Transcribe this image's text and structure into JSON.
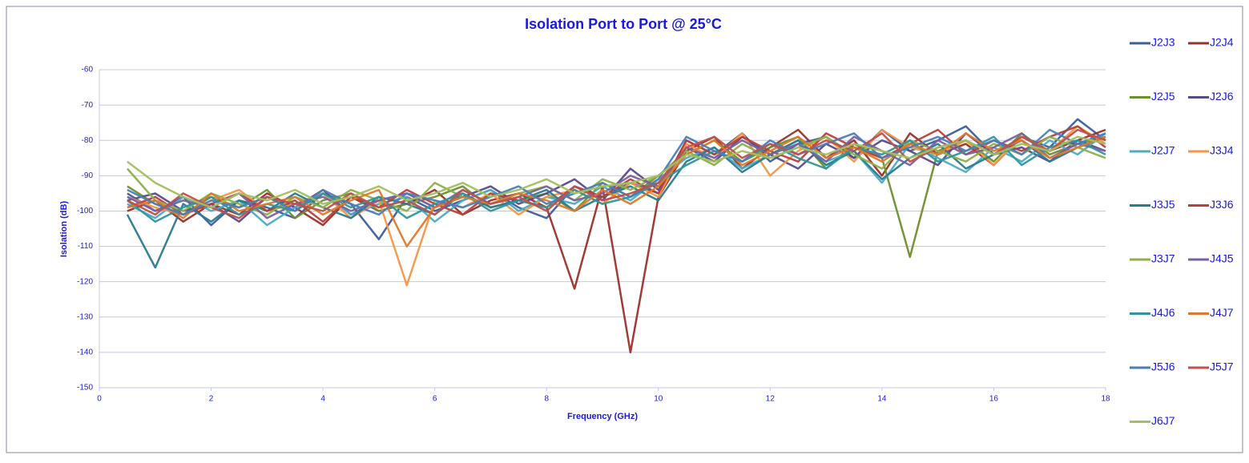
{
  "chart_data": {
    "type": "line",
    "title": "Isolation Port to Port @ 25°C",
    "x_label": "Frequency (GHz)",
    "y_label": "Isolation (dB)",
    "x": [
      0.5,
      1,
      1.5,
      2,
      2.5,
      3,
      3.5,
      4,
      4.5,
      5,
      5.5,
      6,
      6.5,
      7,
      7.5,
      8,
      8.5,
      9,
      9.5,
      10,
      10.5,
      11,
      11.5,
      12,
      12.5,
      13,
      13.5,
      14,
      14.5,
      15,
      15.5,
      16,
      16.5,
      17,
      17.5,
      18
    ],
    "xlim": [
      0,
      18
    ],
    "xticks": [
      0,
      2,
      4,
      6,
      8,
      10,
      12,
      14,
      16,
      18
    ],
    "ylim": [
      -150,
      -60
    ],
    "yticks": [
      -150,
      -140,
      -130,
      -120,
      -110,
      -100,
      -90,
      -80,
      -70,
      -60
    ],
    "grid": true,
    "legend": "right",
    "series": [
      {
        "name": "J2J3",
        "color": "#3b5e9c",
        "values": [
          -95,
          -100,
          -96,
          -104,
          -97,
          -99,
          -102,
          -95,
          -98,
          -108,
          -96,
          -100,
          -97,
          -94,
          -99,
          -102,
          -93,
          -96,
          -92,
          -95,
          -80,
          -84,
          -78,
          -86,
          -81,
          -79,
          -85,
          -77,
          -83,
          -80,
          -76,
          -84,
          -79,
          -82,
          -74,
          -80
        ]
      },
      {
        "name": "J2J4",
        "color": "#9c302b",
        "values": [
          -100,
          -97,
          -103,
          -98,
          -101,
          -95,
          -99,
          -104,
          -96,
          -100,
          -98,
          -94,
          -101,
          -97,
          -95,
          -99,
          -122,
          -93,
          -140,
          -96,
          -83,
          -79,
          -88,
          -82,
          -77,
          -85,
          -80,
          -90,
          -78,
          -84,
          -81,
          -87,
          -79,
          -83,
          -80,
          -77
        ]
      },
      {
        "name": "J2J5",
        "color": "#6f8f2e",
        "values": [
          -93,
          -98,
          -101,
          -96,
          -99,
          -94,
          -102,
          -97,
          -95,
          -100,
          -98,
          -96,
          -93,
          -99,
          -97,
          -95,
          -100,
          -92,
          -96,
          -90,
          -84,
          -80,
          -86,
          -82,
          -79,
          -88,
          -81,
          -85,
          -113,
          -83,
          -80,
          -86,
          -78,
          -84,
          -81,
          -79
        ]
      },
      {
        "name": "J2J6",
        "color": "#5a4a8a",
        "values": [
          -97,
          -95,
          -100,
          -98,
          -103,
          -96,
          -99,
          -94,
          -101,
          -97,
          -95,
          -99,
          -96,
          -93,
          -98,
          -95,
          -91,
          -97,
          -88,
          -94,
          -82,
          -86,
          -79,
          -84,
          -88,
          -81,
          -85,
          -80,
          -83,
          -87,
          -78,
          -84,
          -82,
          -86,
          -80,
          -83
        ]
      },
      {
        "name": "J2J7",
        "color": "#4bacc6",
        "values": [
          -98,
          -102,
          -96,
          -100,
          -97,
          -104,
          -99,
          -95,
          -101,
          -98,
          -96,
          -103,
          -97,
          -94,
          -100,
          -96,
          -98,
          -93,
          -97,
          -91,
          -85,
          -82,
          -88,
          -84,
          -80,
          -86,
          -83,
          -92,
          -81,
          -85,
          -89,
          -82,
          -86,
          -80,
          -84,
          -78
        ]
      },
      {
        "name": "J3J4",
        "color": "#f79646",
        "values": [
          -96,
          -99,
          -101,
          -97,
          -94,
          -100,
          -98,
          -95,
          -102,
          -97,
          -121,
          -97,
          -99,
          -95,
          -101,
          -96,
          -94,
          -98,
          -92,
          -96,
          -81,
          -85,
          -78,
          -90,
          -83,
          -79,
          -86,
          -77,
          -82,
          -84,
          -80,
          -87,
          -79,
          -83,
          -76,
          -81
        ]
      },
      {
        "name": "J3J5",
        "color": "#2a7b8f",
        "values": [
          -101,
          -116,
          -98,
          -103,
          -97,
          -100,
          -95,
          -99,
          -102,
          -96,
          -98,
          -101,
          -95,
          -99,
          -97,
          -94,
          -100,
          -96,
          -93,
          -97,
          -86,
          -82,
          -89,
          -84,
          -80,
          -87,
          -83,
          -91,
          -85,
          -81,
          -88,
          -84,
          -80,
          -86,
          -82,
          -79
        ]
      },
      {
        "name": "J3J6",
        "color": "#b8403c",
        "values": [
          -99,
          -96,
          -101,
          -98,
          -95,
          -100,
          -97,
          -103,
          -96,
          -99,
          -94,
          -98,
          -101,
          -95,
          -97,
          -99,
          -93,
          -96,
          -91,
          -95,
          -80,
          -84,
          -79,
          -83,
          -86,
          -78,
          -82,
          -85,
          -81,
          -77,
          -84,
          -80,
          -83,
          -79,
          -76,
          -82
        ]
      },
      {
        "name": "J3J7",
        "color": "#8db04a",
        "values": [
          -88,
          -97,
          -100,
          -95,
          -98,
          -101,
          -96,
          -99,
          -94,
          -97,
          -100,
          -92,
          -96,
          -98,
          -95,
          -93,
          -97,
          -91,
          -94,
          -90,
          -83,
          -87,
          -81,
          -85,
          -82,
          -79,
          -84,
          -88,
          -80,
          -83,
          -86,
          -81,
          -84,
          -79,
          -82,
          -85
        ]
      },
      {
        "name": "J4J5",
        "color": "#7a62a0",
        "values": [
          -96,
          -100,
          -97,
          -99,
          -95,
          -102,
          -98,
          -96,
          -100,
          -97,
          -95,
          -99,
          -94,
          -98,
          -96,
          -93,
          -97,
          -95,
          -90,
          -93,
          -82,
          -85,
          -80,
          -84,
          -81,
          -86,
          -79,
          -83,
          -87,
          -80,
          -84,
          -82,
          -78,
          -85,
          -81,
          -83
        ]
      },
      {
        "name": "J4J6",
        "color": "#31959c",
        "values": [
          -97,
          -103,
          -99,
          -96,
          -101,
          -98,
          -100,
          -95,
          -99,
          -96,
          -102,
          -98,
          -95,
          -100,
          -97,
          -99,
          -94,
          -98,
          -96,
          -92,
          -87,
          -83,
          -86,
          -81,
          -85,
          -88,
          -82,
          -84,
          -80,
          -86,
          -83,
          -79,
          -87,
          -82,
          -80,
          -84
        ]
      },
      {
        "name": "J4J7",
        "color": "#e0792a",
        "values": [
          -99,
          -97,
          -102,
          -95,
          -100,
          -98,
          -96,
          -101,
          -97,
          -94,
          -110,
          -99,
          -96,
          -98,
          -95,
          -97,
          -100,
          -94,
          -98,
          -93,
          -84,
          -80,
          -87,
          -83,
          -79,
          -85,
          -82,
          -86,
          -81,
          -84,
          -78,
          -83,
          -80,
          -85,
          -82,
          -79
        ]
      },
      {
        "name": "J5J6",
        "color": "#4a7ebb",
        "values": [
          -94,
          -98,
          -101,
          -97,
          -99,
          -96,
          -100,
          -94,
          -98,
          -101,
          -95,
          -97,
          -99,
          -96,
          -93,
          -98,
          -95,
          -92,
          -96,
          -91,
          -79,
          -83,
          -86,
          -80,
          -84,
          -81,
          -78,
          -85,
          -82,
          -79,
          -83,
          -80,
          -84,
          -77,
          -81,
          -78
        ]
      },
      {
        "name": "J5J7",
        "color": "#c0504d",
        "values": [
          -97,
          -101,
          -95,
          -99,
          -102,
          -96,
          -98,
          -100,
          -95,
          -99,
          -97,
          -101,
          -94,
          -98,
          -96,
          -100,
          -93,
          -97,
          -95,
          -92,
          -82,
          -79,
          -85,
          -81,
          -84,
          -80,
          -83,
          -78,
          -86,
          -82,
          -80,
          -84,
          -79,
          -83,
          -77,
          -80
        ]
      },
      {
        "name": "J6J7",
        "color": "#a3bf5f",
        "values": [
          -86,
          -92,
          -96,
          -99,
          -95,
          -97,
          -94,
          -98,
          -96,
          -93,
          -97,
          -95,
          -92,
          -96,
          -94,
          -91,
          -95,
          -93,
          -92,
          -90,
          -84,
          -86,
          -83,
          -85,
          -82,
          -84,
          -81,
          -83,
          -85,
          -82,
          -80,
          -84,
          -81,
          -83,
          -79,
          -81
        ]
      }
    ]
  }
}
